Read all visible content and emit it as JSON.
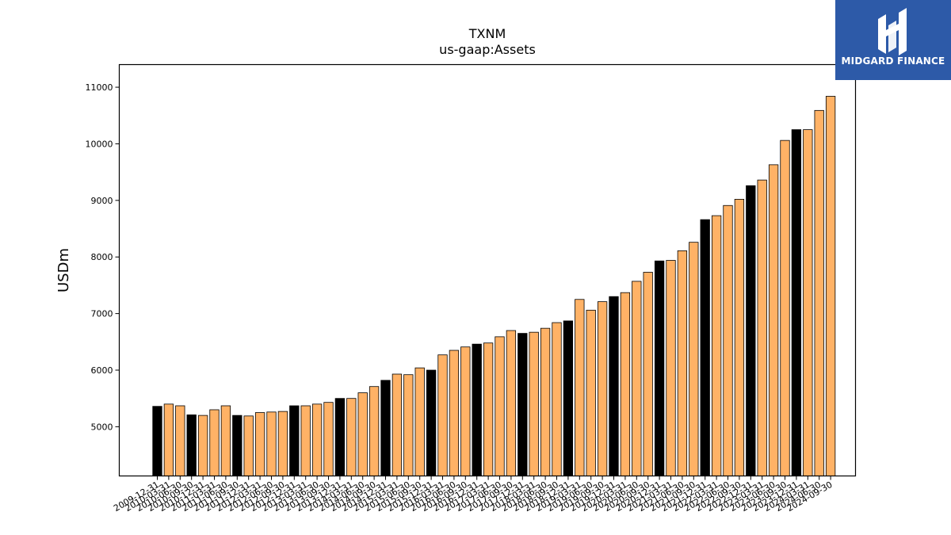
{
  "chart_data": {
    "type": "bar",
    "title": "TXNM",
    "subtitle": "us-gaap:Assets",
    "xlabel": "",
    "ylabel": "USDm",
    "ylim": [
      4130,
      11400
    ],
    "yticks": [
      5000,
      6000,
      7000,
      8000,
      9000,
      10000,
      11000
    ],
    "grid": false,
    "colors": {
      "annual": "#000000",
      "quarter": "#ffb266",
      "edge": "#000000"
    },
    "categories": [
      "2009-12-31",
      "2010-03-31",
      "2010-06-30",
      "2010-09-30",
      "2010-12-31",
      "2011-03-31",
      "2011-06-30",
      "2011-09-30",
      "2011-12-31",
      "2012-03-31",
      "2012-06-30",
      "2012-09-30",
      "2012-12-31",
      "2013-03-31",
      "2013-06-30",
      "2013-09-30",
      "2013-12-31",
      "2014-03-31",
      "2014-06-30",
      "2014-09-30",
      "2014-12-31",
      "2015-03-31",
      "2015-06-30",
      "2015-09-30",
      "2015-12-31",
      "2016-03-31",
      "2016-06-30",
      "2016-09-30",
      "2016-12-31",
      "2017-03-31",
      "2017-06-30",
      "2017-09-30",
      "2017-12-31",
      "2018-03-31",
      "2018-06-30",
      "2018-09-30",
      "2018-12-31",
      "2019-03-31",
      "2019-06-30",
      "2019-09-30",
      "2019-12-31",
      "2020-03-31",
      "2020-06-30",
      "2020-09-30",
      "2020-12-31",
      "2021-03-31",
      "2021-06-30",
      "2021-09-30",
      "2021-12-31",
      "2022-03-31",
      "2022-06-30",
      "2022-09-30",
      "2022-12-31",
      "2023-03-31",
      "2023-06-30",
      "2023-09-30",
      "2023-12-31",
      "2024-03-31",
      "2024-06-30",
      "2024-09-30"
    ],
    "values": [
      5360,
      5400,
      5370,
      5210,
      5200,
      5300,
      5370,
      5200,
      5190,
      5250,
      5260,
      5270,
      5370,
      5370,
      5400,
      5430,
      5500,
      5500,
      5600,
      5710,
      5820,
      5930,
      5920,
      6040,
      6000,
      6270,
      6350,
      6410,
      6460,
      6480,
      6590,
      6700,
      6650,
      6670,
      6740,
      6840,
      6870,
      7250,
      7060,
      7210,
      7300,
      7370,
      7570,
      7730,
      7930,
      7940,
      8110,
      8260,
      8660,
      8730,
      8910,
      9020,
      9260,
      9360,
      9630,
      10060,
      10250,
      10250,
      10590,
      10840
    ],
    "annual_flags": [
      true,
      false,
      false,
      true,
      false,
      false,
      false,
      true,
      false,
      false,
      false,
      false,
      true,
      false,
      false,
      false,
      true,
      false,
      false,
      false,
      true,
      false,
      false,
      false,
      true,
      false,
      false,
      false,
      true,
      false,
      false,
      false,
      true,
      false,
      false,
      false,
      true,
      false,
      false,
      false,
      true,
      false,
      false,
      false,
      true,
      false,
      false,
      false,
      true,
      false,
      false,
      false,
      true,
      false,
      false,
      false,
      true,
      false,
      false,
      false
    ]
  },
  "logo": {
    "text": "MIDGARD FINANCE"
  }
}
